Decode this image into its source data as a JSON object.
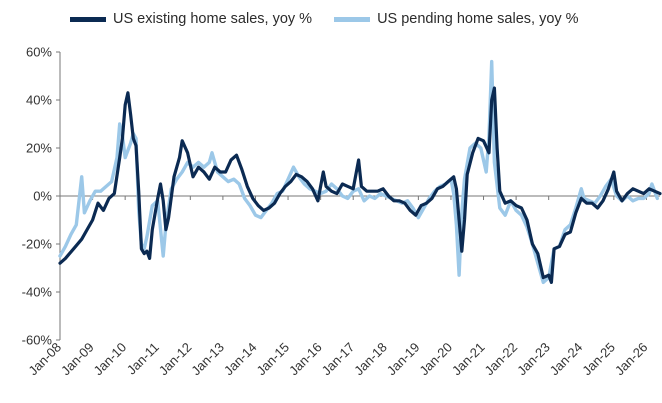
{
  "chart_data": {
    "type": "line",
    "title": "",
    "xlabel": "",
    "ylabel": "",
    "ylim": [
      -60,
      60
    ],
    "y_ticks": [
      60,
      40,
      20,
      0,
      -20,
      -40,
      -60
    ],
    "y_tick_labels": [
      "60%",
      "40%",
      "20%",
      "0%",
      "-20%",
      "-40%",
      "-60%"
    ],
    "x_range": [
      "2008-01",
      "2026-06"
    ],
    "x_tick_labels": [
      "Jan-08",
      "Jan-09",
      "Jan-10",
      "Jan-11",
      "Jan-12",
      "Jan-13",
      "Jan-14",
      "Jan-15",
      "Jan-16",
      "Jan-17",
      "Jan-18",
      "Jan-19",
      "Jan-20",
      "Jan-21",
      "Jan-22",
      "Jan-23",
      "Jan-24",
      "Jan-25",
      "Jan-26"
    ],
    "grid": false,
    "legend_position": "top",
    "series": [
      {
        "name": "US existing home sales, yoy %",
        "color": "#0b2a52",
        "points": [
          [
            "2008-01",
            -28
          ],
          [
            "2008-03",
            -26
          ],
          [
            "2008-06",
            -22
          ],
          [
            "2008-09",
            -18
          ],
          [
            "2008-11",
            -14
          ],
          [
            "2009-01",
            -10
          ],
          [
            "2009-03",
            -3
          ],
          [
            "2009-05",
            -6
          ],
          [
            "2009-07",
            -1
          ],
          [
            "2009-09",
            1
          ],
          [
            "2009-11",
            16
          ],
          [
            "2009-12",
            24
          ],
          [
            "2010-01",
            38
          ],
          [
            "2010-02",
            43
          ],
          [
            "2010-03",
            34
          ],
          [
            "2010-04",
            24
          ],
          [
            "2010-05",
            21
          ],
          [
            "2010-06",
            2
          ],
          [
            "2010-07",
            -22
          ],
          [
            "2010-08",
            -24
          ],
          [
            "2010-09",
            -23
          ],
          [
            "2010-10",
            -26
          ],
          [
            "2010-11",
            -14
          ],
          [
            "2011-01",
            -1
          ],
          [
            "2011-02",
            5
          ],
          [
            "2011-03",
            -2
          ],
          [
            "2011-04",
            -14
          ],
          [
            "2011-05",
            -9
          ],
          [
            "2011-07",
            8
          ],
          [
            "2011-09",
            16
          ],
          [
            "2011-10",
            23
          ],
          [
            "2011-12",
            18
          ],
          [
            "2012-02",
            8
          ],
          [
            "2012-04",
            12
          ],
          [
            "2012-06",
            10
          ],
          [
            "2012-08",
            7
          ],
          [
            "2012-10",
            12
          ],
          [
            "2012-12",
            10
          ],
          [
            "2013-02",
            10
          ],
          [
            "2013-04",
            15
          ],
          [
            "2013-06",
            17
          ],
          [
            "2013-08",
            11
          ],
          [
            "2013-10",
            4
          ],
          [
            "2013-12",
            -1
          ],
          [
            "2014-02",
            -4
          ],
          [
            "2014-04",
            -6
          ],
          [
            "2014-06",
            -5
          ],
          [
            "2014-08",
            -3
          ],
          [
            "2014-10",
            1
          ],
          [
            "2014-12",
            4
          ],
          [
            "2015-02",
            6
          ],
          [
            "2015-04",
            9
          ],
          [
            "2015-06",
            8
          ],
          [
            "2015-08",
            6
          ],
          [
            "2015-10",
            3
          ],
          [
            "2015-12",
            -2
          ],
          [
            "2016-02",
            10
          ],
          [
            "2016-03",
            4
          ],
          [
            "2016-05",
            2
          ],
          [
            "2016-07",
            1
          ],
          [
            "2016-09",
            5
          ],
          [
            "2016-11",
            4
          ],
          [
            "2017-01",
            3
          ],
          [
            "2017-03",
            15
          ],
          [
            "2017-04",
            4
          ],
          [
            "2017-06",
            2
          ],
          [
            "2017-08",
            2
          ],
          [
            "2017-10",
            2
          ],
          [
            "2017-12",
            3
          ],
          [
            "2018-02",
            0
          ],
          [
            "2018-04",
            -2
          ],
          [
            "2018-06",
            -2
          ],
          [
            "2018-08",
            -3
          ],
          [
            "2018-10",
            -6
          ],
          [
            "2018-12",
            -8
          ],
          [
            "2019-02",
            -4
          ],
          [
            "2019-04",
            -3
          ],
          [
            "2019-06",
            -1
          ],
          [
            "2019-08",
            3
          ],
          [
            "2019-10",
            4
          ],
          [
            "2019-12",
            6
          ],
          [
            "2020-02",
            8
          ],
          [
            "2020-03",
            3
          ],
          [
            "2020-04",
            -10
          ],
          [
            "2020-05",
            -23
          ],
          [
            "2020-06",
            -10
          ],
          [
            "2020-07",
            9
          ],
          [
            "2020-09",
            18
          ],
          [
            "2020-11",
            24
          ],
          [
            "2021-01",
            23
          ],
          [
            "2021-03",
            18
          ],
          [
            "2021-04",
            40
          ],
          [
            "2021-05",
            45
          ],
          [
            "2021-06",
            20
          ],
          [
            "2021-07",
            2
          ],
          [
            "2021-09",
            -3
          ],
          [
            "2021-11",
            -2
          ],
          [
            "2022-01",
            -4
          ],
          [
            "2022-03",
            -5
          ],
          [
            "2022-05",
            -10
          ],
          [
            "2022-07",
            -20
          ],
          [
            "2022-09",
            -24
          ],
          [
            "2022-11",
            -34
          ],
          [
            "2023-01",
            -33
          ],
          [
            "2023-02",
            -36
          ],
          [
            "2023-03",
            -22
          ],
          [
            "2023-05",
            -21
          ],
          [
            "2023-07",
            -16
          ],
          [
            "2023-09",
            -15
          ],
          [
            "2023-11",
            -7
          ],
          [
            "2024-01",
            -1
          ],
          [
            "2024-03",
            -3
          ],
          [
            "2024-05",
            -3
          ],
          [
            "2024-07",
            -5
          ],
          [
            "2024-09",
            -2
          ],
          [
            "2024-11",
            3
          ],
          [
            "2025-01",
            10
          ],
          [
            "2025-02",
            2
          ],
          [
            "2025-04",
            -2
          ],
          [
            "2025-06",
            1
          ],
          [
            "2025-08",
            3
          ],
          [
            "2025-10",
            2
          ],
          [
            "2025-12",
            1
          ],
          [
            "2026-02",
            3
          ],
          [
            "2026-04",
            2
          ],
          [
            "2026-06",
            1
          ]
        ]
      },
      {
        "name": "US pending home sales, yoy %",
        "color": "#9cc8e8",
        "points": [
          [
            "2008-01",
            -25
          ],
          [
            "2008-03",
            -21
          ],
          [
            "2008-05",
            -16
          ],
          [
            "2008-07",
            -12
          ],
          [
            "2008-09",
            8
          ],
          [
            "2008-10",
            -7
          ],
          [
            "2008-12",
            -2
          ],
          [
            "2009-02",
            2
          ],
          [
            "2009-04",
            2
          ],
          [
            "2009-06",
            4
          ],
          [
            "2009-08",
            6
          ],
          [
            "2009-10",
            16
          ],
          [
            "2009-11",
            30
          ],
          [
            "2009-12",
            25
          ],
          [
            "2010-01",
            16
          ],
          [
            "2010-03",
            22
          ],
          [
            "2010-04",
            26
          ],
          [
            "2010-05",
            24
          ],
          [
            "2010-06",
            -6
          ],
          [
            "2010-07",
            -20
          ],
          [
            "2010-08",
            -22
          ],
          [
            "2010-09",
            -17
          ],
          [
            "2010-11",
            -4
          ],
          [
            "2011-01",
            -2
          ],
          [
            "2011-03",
            -25
          ],
          [
            "2011-04",
            -12
          ],
          [
            "2011-06",
            3
          ],
          [
            "2011-08",
            7
          ],
          [
            "2011-10",
            10
          ],
          [
            "2011-12",
            14
          ],
          [
            "2012-02",
            12
          ],
          [
            "2012-04",
            14
          ],
          [
            "2012-06",
            12
          ],
          [
            "2012-08",
            14
          ],
          [
            "2012-09",
            18
          ],
          [
            "2012-11",
            10
          ],
          [
            "2013-01",
            8
          ],
          [
            "2013-03",
            6
          ],
          [
            "2013-05",
            7
          ],
          [
            "2013-07",
            5
          ],
          [
            "2013-09",
            -1
          ],
          [
            "2013-11",
            -4
          ],
          [
            "2014-01",
            -8
          ],
          [
            "2014-03",
            -9
          ],
          [
            "2014-05",
            -6
          ],
          [
            "2014-07",
            -3
          ],
          [
            "2014-09",
            1
          ],
          [
            "2014-11",
            2
          ],
          [
            "2015-01",
            7
          ],
          [
            "2015-03",
            12
          ],
          [
            "2015-05",
            8
          ],
          [
            "2015-07",
            5
          ],
          [
            "2015-09",
            3
          ],
          [
            "2015-11",
            2
          ],
          [
            "2016-01",
            1
          ],
          [
            "2016-03",
            2
          ],
          [
            "2016-05",
            5
          ],
          [
            "2016-07",
            3
          ],
          [
            "2016-09",
            0
          ],
          [
            "2016-11",
            -1
          ],
          [
            "2017-01",
            2
          ],
          [
            "2017-03",
            3
          ],
          [
            "2017-05",
            -2
          ],
          [
            "2017-07",
            0
          ],
          [
            "2017-09",
            -1
          ],
          [
            "2017-11",
            1
          ],
          [
            "2018-01",
            0
          ],
          [
            "2018-03",
            -1
          ],
          [
            "2018-05",
            -2
          ],
          [
            "2018-07",
            -3
          ],
          [
            "2018-09",
            -2
          ],
          [
            "2018-11",
            -5
          ],
          [
            "2019-01",
            -9
          ],
          [
            "2019-03",
            -5
          ],
          [
            "2019-05",
            -1
          ],
          [
            "2019-07",
            2
          ],
          [
            "2019-09",
            4
          ],
          [
            "2019-11",
            5
          ],
          [
            "2020-01",
            7
          ],
          [
            "2020-02",
            1
          ],
          [
            "2020-03",
            -12
          ],
          [
            "2020-04",
            -33
          ],
          [
            "2020-05",
            -7
          ],
          [
            "2020-06",
            7
          ],
          [
            "2020-08",
            20
          ],
          [
            "2020-10",
            22
          ],
          [
            "2020-12",
            20
          ],
          [
            "2021-02",
            10
          ],
          [
            "2021-03",
            25
          ],
          [
            "2021-04",
            56
          ],
          [
            "2021-05",
            14
          ],
          [
            "2021-07",
            -5
          ],
          [
            "2021-09",
            -8
          ],
          [
            "2021-11",
            -2
          ],
          [
            "2022-01",
            -6
          ],
          [
            "2022-03",
            -8
          ],
          [
            "2022-05",
            -13
          ],
          [
            "2022-07",
            -20
          ],
          [
            "2022-09",
            -28
          ],
          [
            "2022-11",
            -36
          ],
          [
            "2023-01",
            -34
          ],
          [
            "2023-03",
            -22
          ],
          [
            "2023-05",
            -21
          ],
          [
            "2023-07",
            -14
          ],
          [
            "2023-09",
            -12
          ],
          [
            "2023-11",
            -5
          ],
          [
            "2024-01",
            3
          ],
          [
            "2024-02",
            -1
          ],
          [
            "2024-04",
            -2
          ],
          [
            "2024-06",
            -3
          ],
          [
            "2024-08",
            0
          ],
          [
            "2024-10",
            4
          ],
          [
            "2024-12",
            7
          ],
          [
            "2025-02",
            0
          ],
          [
            "2025-04",
            -2
          ],
          [
            "2025-06",
            0
          ],
          [
            "2025-08",
            -2
          ],
          [
            "2025-10",
            -1
          ],
          [
            "2025-12",
            -1
          ],
          [
            "2026-02",
            1
          ],
          [
            "2026-03",
            5
          ],
          [
            "2026-05",
            -1
          ]
        ]
      }
    ]
  }
}
